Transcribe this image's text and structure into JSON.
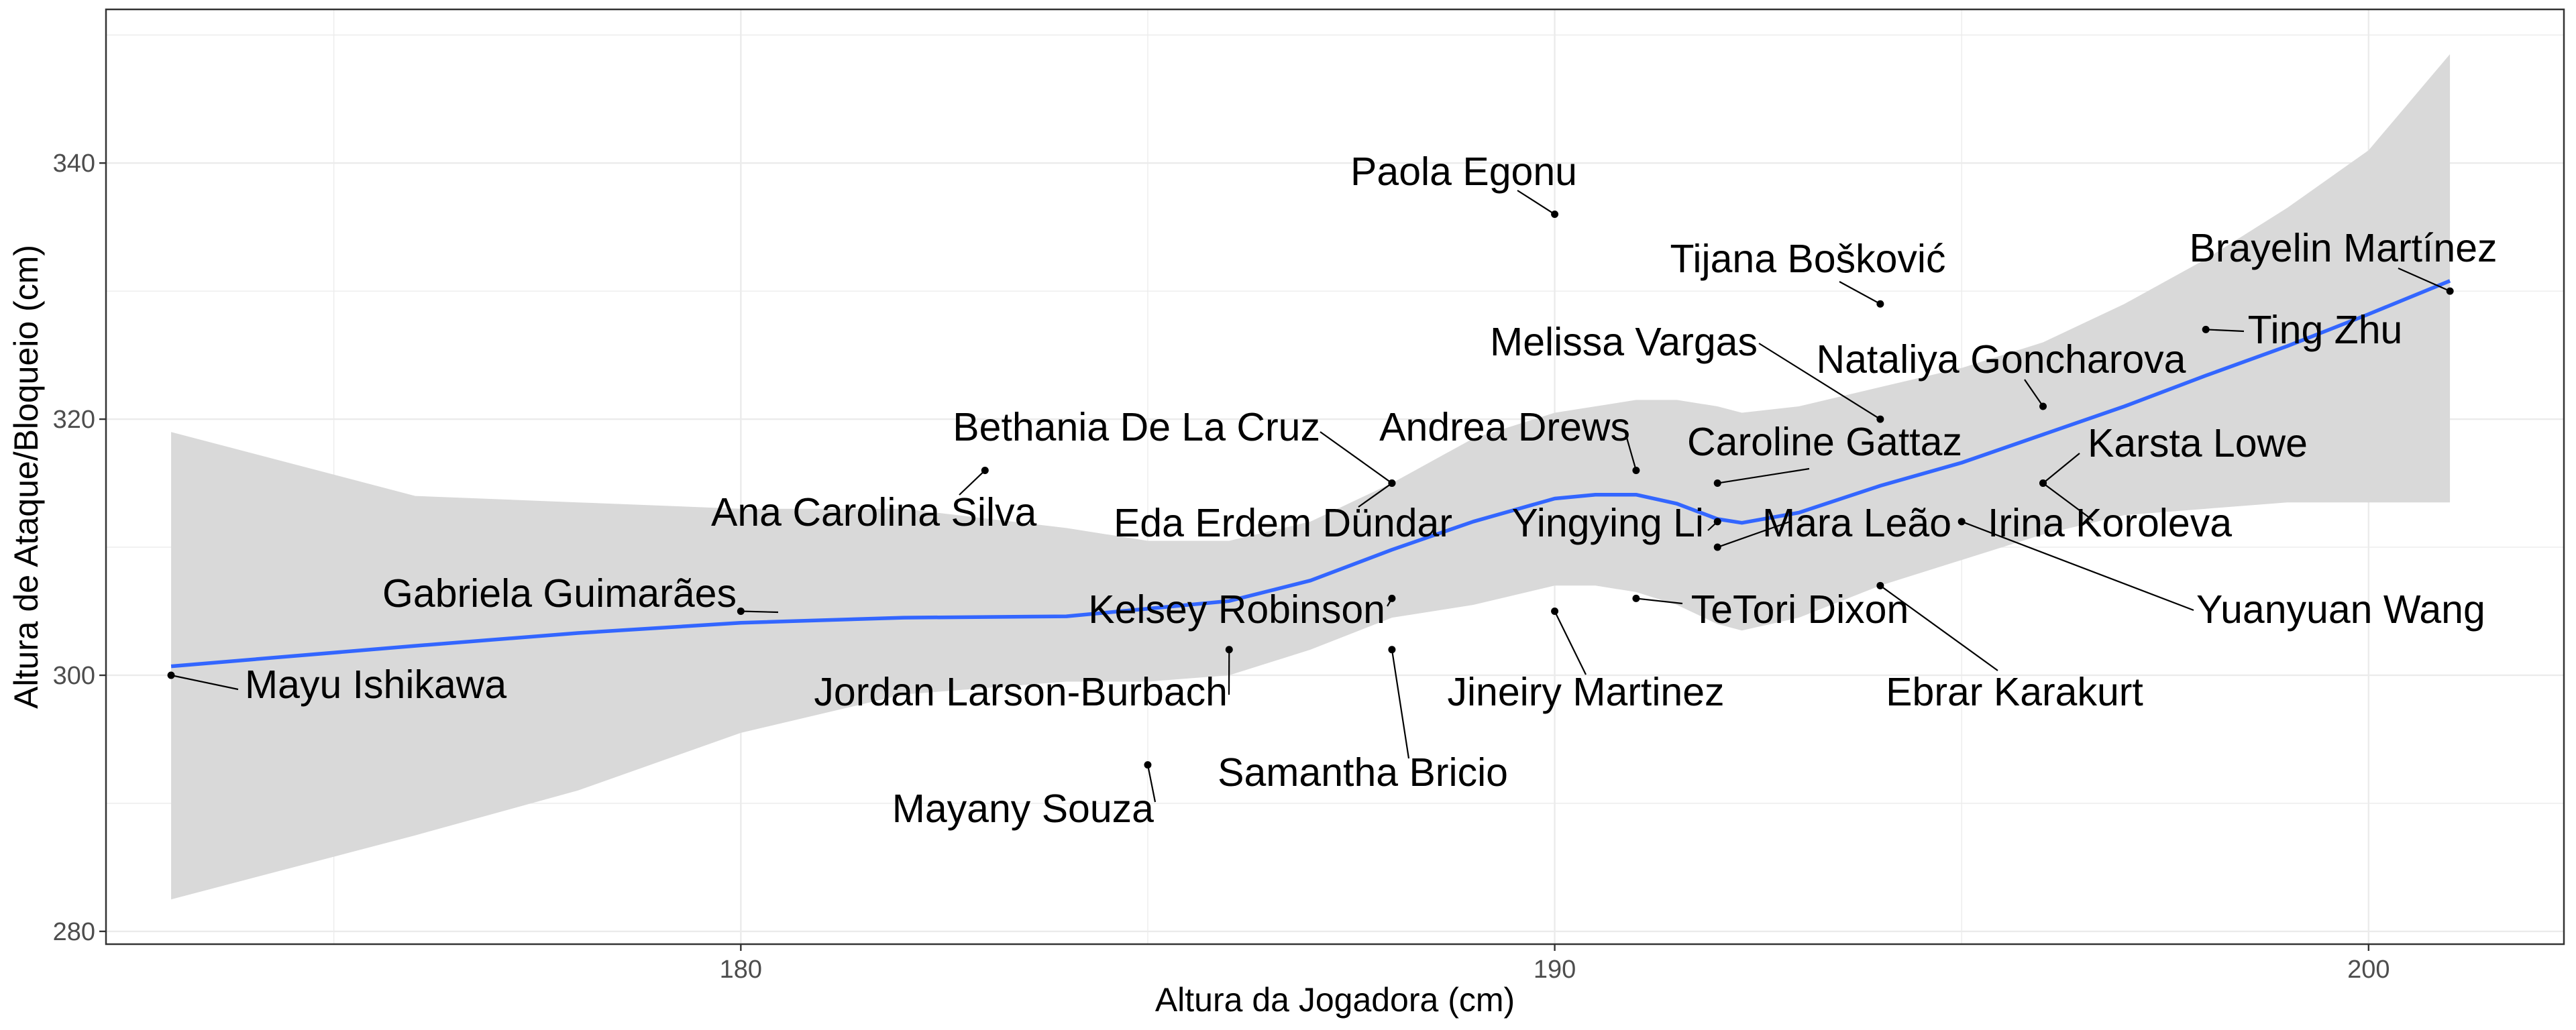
{
  "chart_data": {
    "type": "scatter",
    "title": "",
    "xlabel": "Altura da Jogadora (cm)",
    "ylabel": "Altura de Ataque/Bloqueio (cm)",
    "xlim": [
      172.2,
      202.4
    ],
    "ylim": [
      279,
      352
    ],
    "x_ticks": [
      180,
      190,
      200
    ],
    "y_ticks": [
      280,
      300,
      320,
      340
    ],
    "grid": true,
    "legend": "none",
    "colors": {
      "smooth_line": "#3366FF",
      "ribbon": "#D9D9D9",
      "point": "#000000",
      "grid": "#EBEBEB",
      "panel_border": "#333333"
    },
    "points": [
      {
        "name": "Mayu Ishikawa",
        "x": 173,
        "y": 300
      },
      {
        "name": "Gabriela Guimarães",
        "x": 180,
        "y": 305
      },
      {
        "name": "Ana Carolina Silva",
        "x": 183,
        "y": 316
      },
      {
        "name": "Mayany Souza",
        "x": 185,
        "y": 293
      },
      {
        "name": "Jordan Larson-Burbach",
        "x": 186,
        "y": 302
      },
      {
        "name": "Bethania De La Cruz",
        "x": 188,
        "y": 315
      },
      {
        "name": "Eda Erdem Dündar",
        "x": 188,
        "y": 315
      },
      {
        "name": "Kelsey Robinson",
        "x": 188,
        "y": 306
      },
      {
        "name": "Samantha Bricio",
        "x": 188,
        "y": 302
      },
      {
        "name": "Paola Egonu",
        "x": 190,
        "y": 336
      },
      {
        "name": "Jineiry Martinez",
        "x": 190,
        "y": 305
      },
      {
        "name": "Andrea Drews",
        "x": 191,
        "y": 316
      },
      {
        "name": "TeTori Dixon",
        "x": 191,
        "y": 306
      },
      {
        "name": "Caroline Gattaz",
        "x": 192,
        "y": 315
      },
      {
        "name": "Yingying Li",
        "x": 192,
        "y": 312
      },
      {
        "name": "Mara Leão",
        "x": 192,
        "y": 310
      },
      {
        "name": "Tijana Bošković",
        "x": 194,
        "y": 329
      },
      {
        "name": "Melissa Vargas",
        "x": 194,
        "y": 320
      },
      {
        "name": "Ebrar Karakurt",
        "x": 194,
        "y": 307
      },
      {
        "name": "Yuanyuan Wang",
        "x": 195,
        "y": 312
      },
      {
        "name": "Nataliya Goncharova",
        "x": 196,
        "y": 321
      },
      {
        "name": "Karsta Lowe",
        "x": 196,
        "y": 315
      },
      {
        "name": "Irina Koroleva",
        "x": 196,
        "y": 315
      },
      {
        "name": "Ting Zhu",
        "x": 198,
        "y": 327
      },
      {
        "name": "Brayelin Martínez",
        "x": 201,
        "y": 330
      }
    ],
    "smooth": {
      "x": [
        173,
        176,
        178,
        180,
        182,
        184,
        185,
        186,
        187,
        188,
        189,
        190,
        190.5,
        191,
        191.5,
        192,
        192.3,
        193,
        194,
        195,
        196,
        197,
        198,
        199,
        200,
        201
      ],
      "y": [
        300.7,
        302.3,
        303.3,
        304.1,
        304.5,
        304.6,
        305.2,
        305.8,
        307.4,
        309.8,
        312,
        313.8,
        314.1,
        314.1,
        313.4,
        312.2,
        311.9,
        312.7,
        314.8,
        316.6,
        318.8,
        321,
        323.4,
        325.7,
        328.2,
        330.8
      ],
      "lower": [
        282.5,
        287.5,
        291,
        295.5,
        298.5,
        299.5,
        299.5,
        300,
        302,
        304.5,
        305.5,
        307,
        307,
        306.5,
        305.5,
        304,
        303.5,
        304.5,
        307,
        309,
        311,
        312.5,
        313,
        313.5,
        313.5,
        313.5
      ],
      "upper": [
        319,
        314,
        313.5,
        313,
        313,
        311.5,
        310.5,
        310.5,
        312,
        315,
        318.5,
        320.5,
        321,
        321.5,
        321.5,
        321,
        320.5,
        321,
        322.5,
        324,
        326,
        329,
        332.5,
        336.5,
        341,
        348.5
      ]
    }
  }
}
